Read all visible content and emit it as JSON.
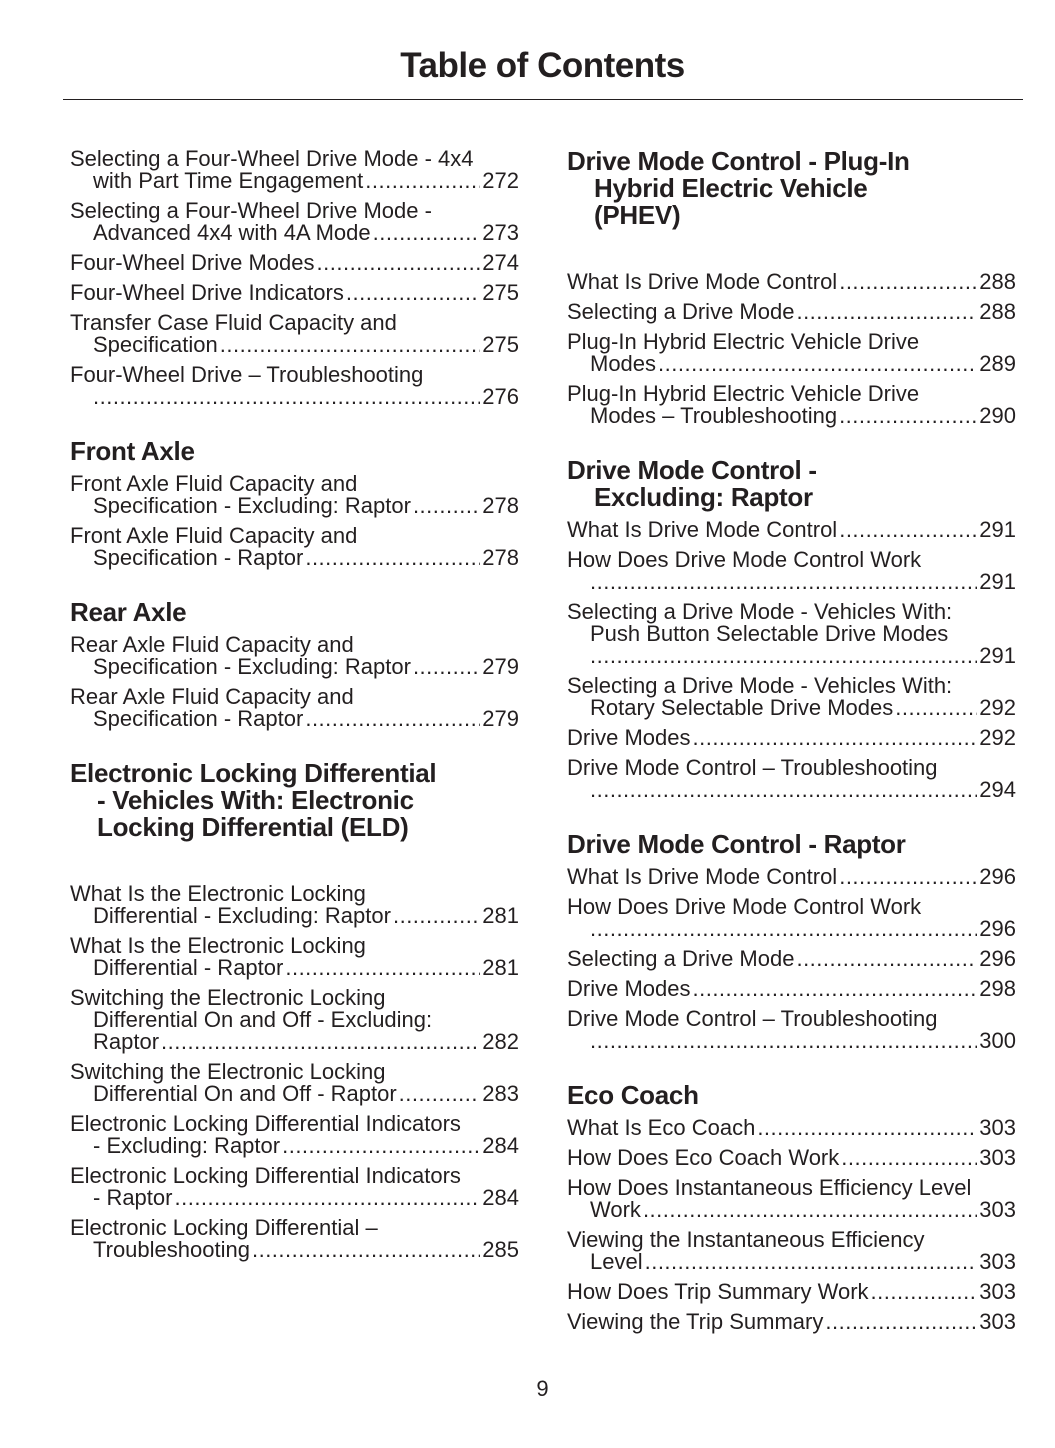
{
  "title": "Table of Contents",
  "page_number": "9",
  "left_column": [
    {
      "heading": [],
      "entries": [
        {
          "lines": [
            "Selecting a Four-Wheel Drive Mode - 4x4",
            "with Part Time Engagement"
          ],
          "page": "272"
        },
        {
          "lines": [
            "Selecting a Four-Wheel Drive Mode -",
            "Advanced 4x4 with 4A Mode"
          ],
          "page": "273"
        },
        {
          "lines": [
            "Four-Wheel Drive Modes"
          ],
          "page": "274"
        },
        {
          "lines": [
            "Four-Wheel Drive Indicators"
          ],
          "page": "275"
        },
        {
          "lines": [
            "Transfer Case Fluid Capacity and",
            "Specification"
          ],
          "page": "275"
        },
        {
          "lines": [
            "Four-Wheel Drive – Troubleshooting",
            ""
          ],
          "page": "276"
        }
      ]
    },
    {
      "heading": [
        "Front Axle"
      ],
      "entries": [
        {
          "lines": [
            "Front Axle Fluid Capacity and",
            "Specification - Excluding: Raptor"
          ],
          "page": "278"
        },
        {
          "lines": [
            "Front Axle Fluid Capacity and",
            "Specification - Raptor"
          ],
          "page": "278"
        }
      ]
    },
    {
      "heading": [
        "Rear Axle"
      ],
      "entries": [
        {
          "lines": [
            "Rear Axle Fluid Capacity and",
            "Specification - Excluding: Raptor"
          ],
          "page": "279"
        },
        {
          "lines": [
            "Rear Axle Fluid Capacity and",
            "Specification - Raptor"
          ],
          "page": "279"
        }
      ]
    },
    {
      "heading": [
        "Electronic Locking Differential",
        "- Vehicles With: Electronic",
        "Locking Differential (ELD)"
      ],
      "entries": [
        {
          "lines": [
            "What Is the Electronic Locking",
            "Differential - Excluding: Raptor"
          ],
          "page": "281"
        },
        {
          "lines": [
            "What Is the Electronic Locking",
            "Differential - Raptor"
          ],
          "page": "281"
        },
        {
          "lines": [
            "Switching the Electronic Locking",
            "Differential On and Off - Excluding:",
            "Raptor"
          ],
          "page": "282"
        },
        {
          "lines": [
            "Switching the Electronic Locking",
            "Differential On and Off - Raptor"
          ],
          "page": "283"
        },
        {
          "lines": [
            "Electronic Locking Differential Indicators",
            "- Excluding: Raptor"
          ],
          "page": "284"
        },
        {
          "lines": [
            "Electronic Locking Differential Indicators",
            "- Raptor"
          ],
          "page": "284"
        },
        {
          "lines": [
            "Electronic Locking Differential –",
            "Troubleshooting"
          ],
          "page": "285"
        }
      ]
    }
  ],
  "right_column": [
    {
      "heading": [
        "Drive Mode Control - Plug-In",
        "Hybrid Electric Vehicle",
        "(PHEV)"
      ],
      "entries": [
        {
          "lines": [
            "What Is Drive Mode Control"
          ],
          "page": "288"
        },
        {
          "lines": [
            "Selecting a Drive Mode"
          ],
          "page": "288"
        },
        {
          "lines": [
            "Plug-In Hybrid Electric Vehicle Drive",
            "Modes"
          ],
          "page": "289"
        },
        {
          "lines": [
            "Plug-In Hybrid Electric Vehicle Drive",
            "Modes – Troubleshooting"
          ],
          "page": "290"
        }
      ]
    },
    {
      "heading": [
        "Drive Mode Control -",
        "Excluding: Raptor"
      ],
      "entries": [
        {
          "lines": [
            "What Is Drive Mode Control"
          ],
          "page": "291"
        },
        {
          "lines": [
            "How Does Drive Mode Control Work",
            ""
          ],
          "page": "291"
        },
        {
          "lines": [
            "Selecting a Drive Mode - Vehicles With:",
            "Push Button Selectable Drive Modes",
            ""
          ],
          "page": "291"
        },
        {
          "lines": [
            "Selecting a Drive Mode - Vehicles With:",
            "Rotary Selectable Drive Modes"
          ],
          "page": "292"
        },
        {
          "lines": [
            "Drive Modes"
          ],
          "page": "292"
        },
        {
          "lines": [
            "Drive Mode Control – Troubleshooting",
            ""
          ],
          "page": "294"
        }
      ]
    },
    {
      "heading": [
        "Drive Mode Control - Raptor"
      ],
      "entries": [
        {
          "lines": [
            "What Is Drive Mode Control"
          ],
          "page": "296"
        },
        {
          "lines": [
            "How Does Drive Mode Control Work",
            ""
          ],
          "page": "296"
        },
        {
          "lines": [
            "Selecting a Drive Mode"
          ],
          "page": "296"
        },
        {
          "lines": [
            "Drive Modes"
          ],
          "page": "298"
        },
        {
          "lines": [
            "Drive Mode Control – Troubleshooting",
            ""
          ],
          "page": "300"
        }
      ]
    },
    {
      "heading": [
        "Eco Coach"
      ],
      "entries": [
        {
          "lines": [
            "What Is Eco Coach"
          ],
          "page": "303"
        },
        {
          "lines": [
            "How Does Eco Coach Work"
          ],
          "page": "303"
        },
        {
          "lines": [
            "How Does Instantaneous Efficiency Level",
            "Work"
          ],
          "page": "303"
        },
        {
          "lines": [
            "Viewing the Instantaneous Efficiency",
            "Level"
          ],
          "page": "303"
        },
        {
          "lines": [
            "How Does Trip Summary Work"
          ],
          "page": "303"
        },
        {
          "lines": [
            "Viewing the Trip Summary"
          ],
          "page": "303"
        }
      ]
    }
  ]
}
